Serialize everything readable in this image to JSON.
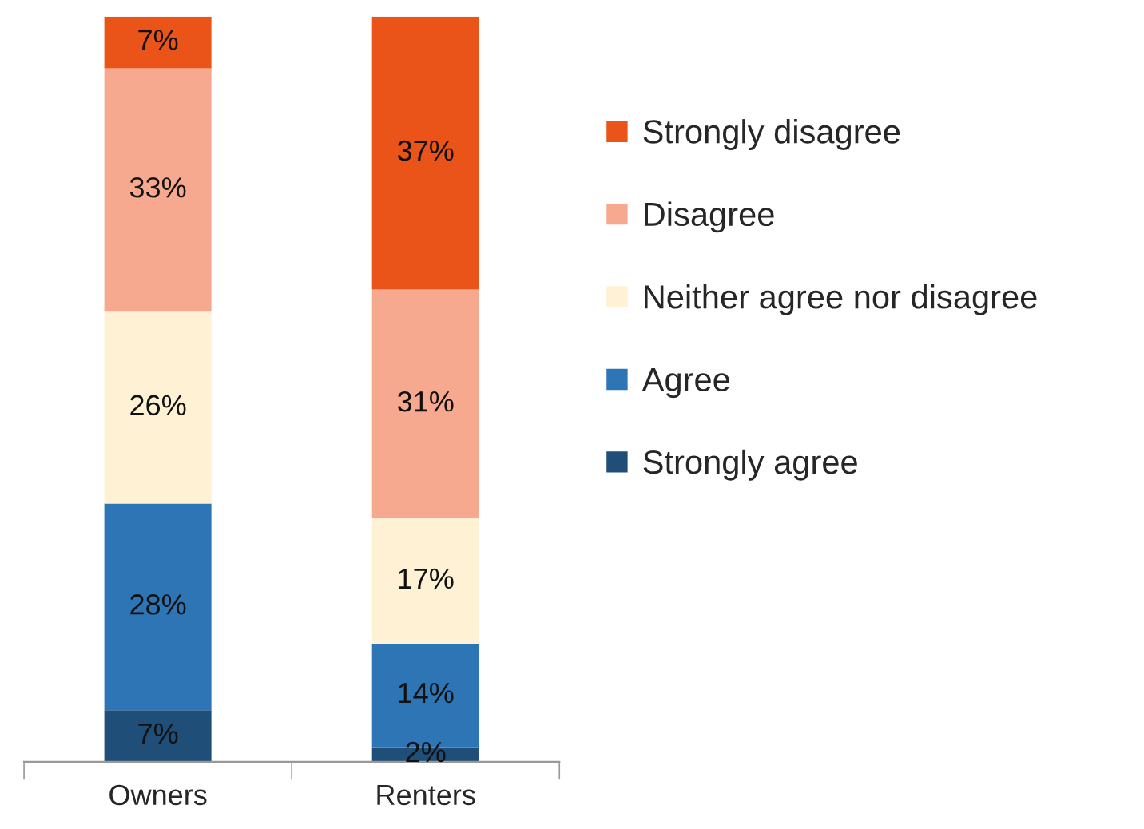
{
  "chart_data": {
    "type": "bar",
    "stacked": true,
    "categories": [
      "Owners",
      "Renters"
    ],
    "series": [
      {
        "name": "Strongly agree",
        "color": "#1f4e79",
        "values": [
          7,
          2
        ],
        "value_labels": [
          "7%",
          "2%"
        ]
      },
      {
        "name": "Agree",
        "color": "#2e75b6",
        "values": [
          28,
          14
        ],
        "value_labels": [
          "28%",
          "14%"
        ]
      },
      {
        "name": "Neither agree nor disagree",
        "color": "#fff2d4",
        "values": [
          26,
          17
        ],
        "value_labels": [
          "26%",
          "17%"
        ]
      },
      {
        "name": "Disagree",
        "color": "#f6a98e",
        "values": [
          33,
          31
        ],
        "value_labels": [
          "33%",
          "31%"
        ]
      },
      {
        "name": "Strongly disagree",
        "color": "#ea5418",
        "values": [
          7,
          37
        ],
        "value_labels": [
          "7%",
          "37%"
        ]
      }
    ],
    "legend": "right",
    "grid": false
  }
}
